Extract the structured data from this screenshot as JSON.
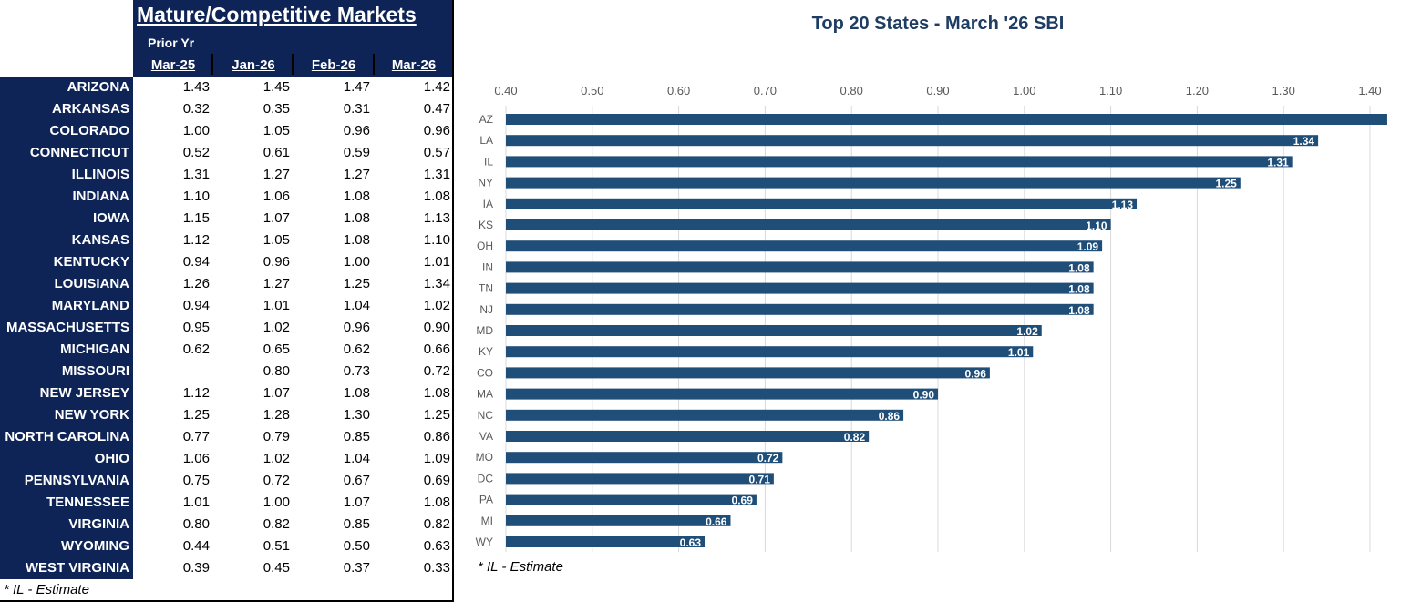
{
  "table": {
    "title": "Mature/Competitive Markets",
    "prior_label": "Prior Yr",
    "columns": [
      "Mar-25",
      "Jan-26",
      "Feb-26",
      "Mar-26"
    ],
    "rows": [
      {
        "state": "ARIZONA",
        "values": [
          "1.43",
          "1.45",
          "1.47",
          "1.42"
        ]
      },
      {
        "state": "ARKANSAS",
        "values": [
          "0.32",
          "0.35",
          "0.31",
          "0.47"
        ]
      },
      {
        "state": "COLORADO",
        "values": [
          "1.00",
          "1.05",
          "0.96",
          "0.96"
        ]
      },
      {
        "state": "CONNECTICUT",
        "values": [
          "0.52",
          "0.61",
          "0.59",
          "0.57"
        ]
      },
      {
        "state": "ILLINOIS",
        "values": [
          "1.31",
          "1.27",
          "1.27",
          "1.31"
        ]
      },
      {
        "state": "INDIANA",
        "values": [
          "1.10",
          "1.06",
          "1.08",
          "1.08"
        ]
      },
      {
        "state": "IOWA",
        "values": [
          "1.15",
          "1.07",
          "1.08",
          "1.13"
        ]
      },
      {
        "state": "KANSAS",
        "values": [
          "1.12",
          "1.05",
          "1.08",
          "1.10"
        ]
      },
      {
        "state": "KENTUCKY",
        "values": [
          "0.94",
          "0.96",
          "1.00",
          "1.01"
        ]
      },
      {
        "state": "LOUISIANA",
        "values": [
          "1.26",
          "1.27",
          "1.25",
          "1.34"
        ]
      },
      {
        "state": "MARYLAND",
        "values": [
          "0.94",
          "1.01",
          "1.04",
          "1.02"
        ]
      },
      {
        "state": "MASSACHUSETTS",
        "values": [
          "0.95",
          "1.02",
          "0.96",
          "0.90"
        ]
      },
      {
        "state": "MICHIGAN",
        "values": [
          "0.62",
          "0.65",
          "0.62",
          "0.66"
        ]
      },
      {
        "state": "MISSOURI",
        "values": [
          "",
          "0.80",
          "0.73",
          "0.72"
        ]
      },
      {
        "state": "NEW JERSEY",
        "values": [
          "1.12",
          "1.07",
          "1.08",
          "1.08"
        ]
      },
      {
        "state": "NEW YORK",
        "values": [
          "1.25",
          "1.28",
          "1.30",
          "1.25"
        ]
      },
      {
        "state": "NORTH CAROLINA",
        "values": [
          "0.77",
          "0.79",
          "0.85",
          "0.86"
        ]
      },
      {
        "state": "OHIO",
        "values": [
          "1.06",
          "1.02",
          "1.04",
          "1.09"
        ]
      },
      {
        "state": "PENNSYLVANIA",
        "values": [
          "0.75",
          "0.72",
          "0.67",
          "0.69"
        ]
      },
      {
        "state": "TENNESSEE",
        "values": [
          "1.01",
          "1.00",
          "1.07",
          "1.08"
        ]
      },
      {
        "state": "VIRGINIA",
        "values": [
          "0.80",
          "0.82",
          "0.85",
          "0.82"
        ]
      },
      {
        "state": "WYOMING",
        "values": [
          "0.44",
          "0.51",
          "0.50",
          "0.63"
        ]
      },
      {
        "state": "WEST VIRGINIA",
        "values": [
          "0.39",
          "0.45",
          "0.37",
          "0.33"
        ]
      }
    ],
    "footnote": "* IL - Estimate"
  },
  "chart_data": {
    "type": "bar",
    "orientation": "horizontal",
    "title": "Top 20 States -  March '26 SBI",
    "categories": [
      "AZ",
      "LA",
      "IL",
      "NY",
      "IA",
      "KS",
      "OH",
      "IN",
      "TN",
      "NJ",
      "MD",
      "KY",
      "CO",
      "MA",
      "NC",
      "VA",
      "MO",
      "DC",
      "PA",
      "MI",
      "WY"
    ],
    "values": [
      1.42,
      1.34,
      1.31,
      1.25,
      1.13,
      1.1,
      1.09,
      1.08,
      1.08,
      1.08,
      1.02,
      1.01,
      0.96,
      0.9,
      0.86,
      0.82,
      0.72,
      0.71,
      0.69,
      0.66,
      0.63
    ],
    "data_labels": [
      "",
      "1.34",
      "1.31",
      "1.25",
      "1.13",
      "1.10",
      "1.09",
      "1.08",
      "1.08",
      "1.08",
      "1.02",
      "1.01",
      "0.96",
      "0.90",
      "0.86",
      "0.82",
      "0.72",
      "0.71",
      "0.69",
      "0.66",
      "0.63"
    ],
    "xlim": [
      0.4,
      1.4
    ],
    "xticks": [
      "0.40",
      "0.50",
      "0.60",
      "0.70",
      "0.80",
      "0.90",
      "1.00",
      "1.10",
      "1.20",
      "1.30",
      "1.40"
    ],
    "xaxis_position": "top",
    "grid": true,
    "bar_color": "#1f4e79",
    "footnote": "* IL -  Estimate"
  }
}
